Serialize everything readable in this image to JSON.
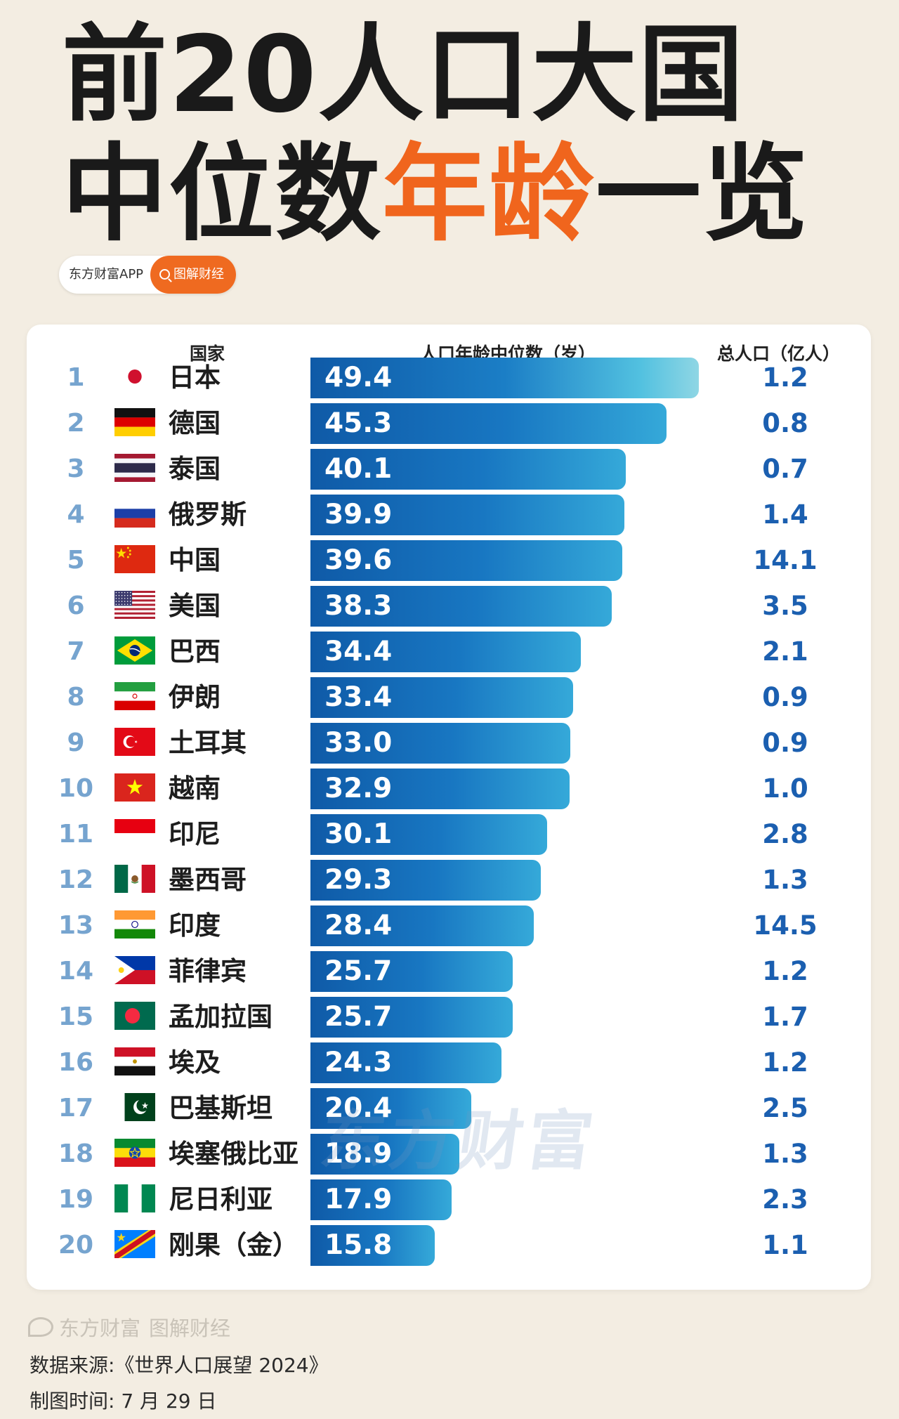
{
  "header": {
    "title_line1": "前20人口大国",
    "title_line2_a": "中位数",
    "title_line2_accent": "年龄",
    "title_line2_b": "一览"
  },
  "source_pill": {
    "app": "东方财富APP",
    "tag": "图解财经"
  },
  "colors": {
    "accent": "#f0651d",
    "bar": "#1877c2",
    "rank": "#76a4cf",
    "population": "#1b5fb0"
  },
  "chart_data": {
    "type": "bar",
    "orientation": "horizontal",
    "columns": {
      "country": "国家",
      "value": "人口年龄中位数（岁）",
      "population": "总人口（亿人）"
    },
    "xlim": [
      0,
      50
    ],
    "rows": [
      {
        "rank": "1",
        "country": "日本",
        "flag": "jp",
        "value": 49.4,
        "value_label": "49.4",
        "population": "1.2"
      },
      {
        "rank": "2",
        "country": "德国",
        "flag": "de",
        "value": 45.3,
        "value_label": "45.3",
        "population": "0.8"
      },
      {
        "rank": "3",
        "country": "泰国",
        "flag": "th",
        "value": 40.1,
        "value_label": "40.1",
        "population": "0.7"
      },
      {
        "rank": "4",
        "country": "俄罗斯",
        "flag": "ru",
        "value": 39.9,
        "value_label": "39.9",
        "population": "1.4"
      },
      {
        "rank": "5",
        "country": "中国",
        "flag": "cn",
        "value": 39.6,
        "value_label": "39.6",
        "population": "14.1"
      },
      {
        "rank": "6",
        "country": "美国",
        "flag": "us",
        "value": 38.3,
        "value_label": "38.3",
        "population": "3.5"
      },
      {
        "rank": "7",
        "country": "巴西",
        "flag": "br",
        "value": 34.4,
        "value_label": "34.4",
        "population": "2.1"
      },
      {
        "rank": "8",
        "country": "伊朗",
        "flag": "ir",
        "value": 33.4,
        "value_label": "33.4",
        "population": "0.9"
      },
      {
        "rank": "9",
        "country": "土耳其",
        "flag": "tr",
        "value": 33.0,
        "value_label": "33.0",
        "population": "0.9"
      },
      {
        "rank": "10",
        "country": "越南",
        "flag": "vn",
        "value": 32.9,
        "value_label": "32.9",
        "population": "1.0"
      },
      {
        "rank": "11",
        "country": "印尼",
        "flag": "id",
        "value": 30.1,
        "value_label": "30.1",
        "population": "2.8"
      },
      {
        "rank": "12",
        "country": "墨西哥",
        "flag": "mx",
        "value": 29.3,
        "value_label": "29.3",
        "population": "1.3"
      },
      {
        "rank": "13",
        "country": "印度",
        "flag": "in",
        "value": 28.4,
        "value_label": "28.4",
        "population": "14.5"
      },
      {
        "rank": "14",
        "country": "菲律宾",
        "flag": "ph",
        "value": 25.7,
        "value_label": "25.7",
        "population": "1.2"
      },
      {
        "rank": "15",
        "country": "孟加拉国",
        "flag": "bd",
        "value": 25.7,
        "value_label": "25.7",
        "population": "1.7"
      },
      {
        "rank": "16",
        "country": "埃及",
        "flag": "eg",
        "value": 24.3,
        "value_label": "24.3",
        "population": "1.2"
      },
      {
        "rank": "17",
        "country": "巴基斯坦",
        "flag": "pk",
        "value": 20.4,
        "value_label": "20.4",
        "population": "2.5"
      },
      {
        "rank": "18",
        "country": "埃塞俄比亚",
        "flag": "et",
        "value": 18.9,
        "value_label": "18.9",
        "population": "1.3"
      },
      {
        "rank": "19",
        "country": "尼日利亚",
        "flag": "ng",
        "value": 17.9,
        "value_label": "17.9",
        "population": "2.3"
      },
      {
        "rank": "20",
        "country": "刚果（金）",
        "flag": "cd",
        "value": 15.8,
        "value_label": "15.8",
        "population": "1.1"
      }
    ]
  },
  "watermark": "东方财富",
  "footer": {
    "brand": "东方财富",
    "brand_tag": "图解财经",
    "source": "数据来源:《世界人口展望 2024》",
    "date": "制图时间: 7 月 29 日"
  }
}
